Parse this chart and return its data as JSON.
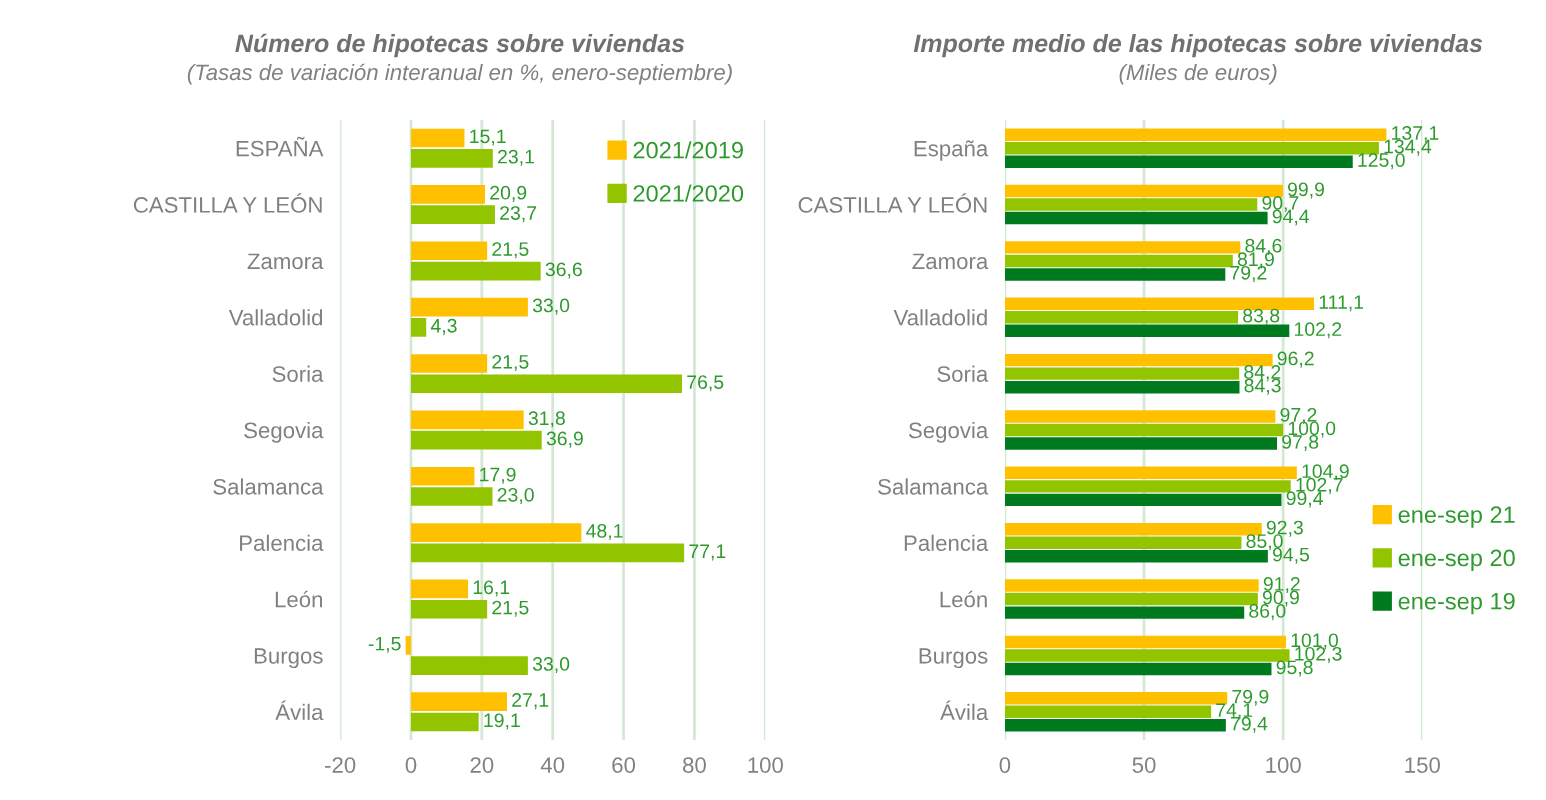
{
  "chart_data": [
    {
      "type": "bar",
      "orientation": "horizontal",
      "title": "Número de hipotecas sobre viviendas",
      "subtitle": "(Tasas de variación interanual en %, enero-septiembre)",
      "categories": [
        "ESPAÑA",
        "CASTILLA Y LEÓN",
        "Zamora",
        "Valladolid",
        "Soria",
        "Segovia",
        "Salamanca",
        "Palencia",
        "León",
        "Burgos",
        "Ávila"
      ],
      "series": [
        {
          "name": "2021/2019",
          "color": "#ffc000",
          "values": [
            15.1,
            20.9,
            21.5,
            33.0,
            21.5,
            31.8,
            17.9,
            48.1,
            16.1,
            -1.5,
            27.1
          ],
          "value_labels": [
            "15,1",
            "20,9",
            "21,5",
            "33,0",
            "21,5",
            "31,8",
            "17,9",
            "48,1",
            "16,1",
            "-1,5",
            "27,1"
          ]
        },
        {
          "name": "2021/2020",
          "color": "#92c400",
          "values": [
            23.1,
            23.7,
            36.6,
            4.3,
            76.5,
            36.9,
            23.0,
            77.1,
            21.5,
            33.0,
            19.1
          ],
          "value_labels": [
            "23,1",
            "23,7",
            "36,6",
            "4,3",
            "76,5",
            "36,9",
            "23,0",
            "77,1",
            "21,5",
            "33,0",
            "19,1"
          ]
        }
      ],
      "xlim": [
        -20,
        100
      ],
      "xticks": [
        -20,
        0,
        20,
        40,
        60,
        80,
        100
      ],
      "grid": "x",
      "legend": "top right"
    },
    {
      "type": "bar",
      "orientation": "horizontal",
      "title": "Importe medio de las hipotecas sobre viviendas",
      "subtitle": "(Miles de euros)",
      "categories": [
        "España",
        "CASTILLA Y LEÓN",
        "Zamora",
        "Valladolid",
        "Soria",
        "Segovia",
        "Salamanca",
        "Palencia",
        "León",
        "Burgos",
        "Ávila"
      ],
      "series": [
        {
          "name": "ene-sep 21",
          "color": "#ffc000",
          "values": [
            137.1,
            99.9,
            84.6,
            111.1,
            96.2,
            97.2,
            104.9,
            92.3,
            91.2,
            101.0,
            79.9
          ],
          "value_labels": [
            "137,1",
            "99,9",
            "84,6",
            "111,1",
            "96,2",
            "97,2",
            "104,9",
            "92,3",
            "91,2",
            "101,0",
            "79,9"
          ]
        },
        {
          "name": "ene-sep 20",
          "color": "#92c400",
          "values": [
            134.4,
            90.7,
            81.9,
            83.8,
            84.2,
            100.0,
            102.7,
            85.0,
            90.9,
            102.3,
            74.1
          ],
          "value_labels": [
            "134,4",
            "90,7",
            "81,9",
            "83,8",
            "84,2",
            "100,0",
            "102,7",
            "85,0",
            "90,9",
            "102,3",
            "74,1"
          ]
        },
        {
          "name": "ene-sep 19",
          "color": "#007a1e",
          "values": [
            125.0,
            94.4,
            79.2,
            102.2,
            84.3,
            97.8,
            99.4,
            94.5,
            86.0,
            95.8,
            79.4
          ],
          "value_labels": [
            "125,0",
            "94,4",
            "79,2",
            "102,2",
            "84,3",
            "97,8",
            "99,4",
            "94,5",
            "86,0",
            "95,8",
            "79,4"
          ]
        }
      ],
      "xlim": [
        0,
        150
      ],
      "xticks": [
        0,
        50,
        100,
        150
      ],
      "grid": "x",
      "legend": "right"
    }
  ]
}
